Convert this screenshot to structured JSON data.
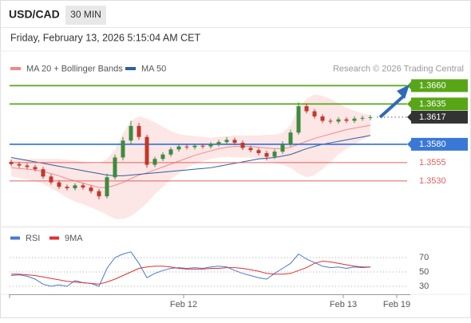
{
  "header": {
    "symbol": "USD/CAD",
    "timeframe": "30 MIN",
    "datetime": "Friday, February 13, 2026 5:15:04 AM CET"
  },
  "chart_data": [
    {
      "type": "candlestick",
      "legend": [
        {
          "name": "MA 20 + Bollinger Bands",
          "color": "#f08a8a"
        },
        {
          "name": "MA 50",
          "color": "#2f5f9e"
        }
      ],
      "credit": "Research © 2026 Trading Central",
      "xlim": [
        -0.2,
        49.6
      ],
      "ylim": [
        1.347,
        1.368
      ],
      "xticks": [
        {
          "value": 21.6,
          "label": "Feb 12"
        },
        {
          "value": 41.6,
          "label": "Feb 13"
        },
        {
          "value": 48.3,
          "label": "Feb 19"
        }
      ],
      "up_color": "#3d8b3d",
      "down_color": "#c0392b",
      "candles": [
        [
          1.3556,
          1.3559,
          1.355,
          1.3553
        ],
        [
          1.3553,
          1.3556,
          1.3548,
          1.3551
        ],
        [
          1.3551,
          1.3554,
          1.3546,
          1.3549
        ],
        [
          1.3549,
          1.3552,
          1.3543,
          1.3546
        ],
        [
          1.3546,
          1.3549,
          1.3533,
          1.3536
        ],
        [
          1.3536,
          1.3539,
          1.3525,
          1.3528
        ],
        [
          1.3528,
          1.3531,
          1.3519,
          1.3522
        ],
        [
          1.3522,
          1.3525,
          1.3517,
          1.352
        ],
        [
          1.352,
          1.3527,
          1.3517,
          1.3524
        ],
        [
          1.3524,
          1.3527,
          1.3518,
          1.3521
        ],
        [
          1.3521,
          1.3524,
          1.3513,
          1.3516
        ],
        [
          1.3516,
          1.3519,
          1.3505,
          1.3509
        ],
        [
          1.3509,
          1.354,
          1.3506,
          1.3535
        ],
        [
          1.3535,
          1.3566,
          1.3532,
          1.3562
        ],
        [
          1.3562,
          1.359,
          1.3558,
          1.3585
        ],
        [
          1.3585,
          1.3612,
          1.358,
          1.3605
        ],
        [
          1.3605,
          1.3609,
          1.3586,
          1.359
        ],
        [
          1.359,
          1.3593,
          1.3548,
          1.3552
        ],
        [
          1.3552,
          1.3563,
          1.3549,
          1.356
        ],
        [
          1.356,
          1.3569,
          1.3557,
          1.3566
        ],
        [
          1.3566,
          1.3576,
          1.3563,
          1.3573
        ],
        [
          1.3573,
          1.358,
          1.357,
          1.3577
        ],
        [
          1.3577,
          1.358,
          1.3573,
          1.3576
        ],
        [
          1.3576,
          1.3581,
          1.3573,
          1.3578
        ],
        [
          1.3578,
          1.3581,
          1.3574,
          1.3577
        ],
        [
          1.3577,
          1.3583,
          1.3574,
          1.358
        ],
        [
          1.358,
          1.3586,
          1.3577,
          1.3583
        ],
        [
          1.3583,
          1.359,
          1.358,
          1.3586
        ],
        [
          1.3586,
          1.3589,
          1.3579,
          1.3582
        ],
        [
          1.3582,
          1.3585,
          1.3572,
          1.3575
        ],
        [
          1.3575,
          1.3578,
          1.3569,
          1.3572
        ],
        [
          1.3572,
          1.3575,
          1.3565,
          1.3568
        ],
        [
          1.3568,
          1.3571,
          1.3558,
          1.3563
        ],
        [
          1.3563,
          1.3573,
          1.356,
          1.357
        ],
        [
          1.357,
          1.3584,
          1.3567,
          1.358
        ],
        [
          1.358,
          1.36,
          1.3577,
          1.3596
        ],
        [
          1.3596,
          1.3637,
          1.3593,
          1.3632
        ],
        [
          1.3632,
          1.3636,
          1.3622,
          1.3625
        ],
        [
          1.3625,
          1.3628,
          1.3615,
          1.3618
        ],
        [
          1.3618,
          1.3621,
          1.3609,
          1.3612
        ],
        [
          1.3612,
          1.3615,
          1.3608,
          1.3611
        ],
        [
          1.3611,
          1.3617,
          1.3608,
          1.3614
        ],
        [
          1.3614,
          1.3617,
          1.3609,
          1.3612
        ],
        [
          1.3612,
          1.3618,
          1.3609,
          1.3615
        ],
        [
          1.3615,
          1.3619,
          1.3612,
          1.3616
        ],
        [
          1.3616,
          1.362,
          1.3613,
          1.3617
        ]
      ],
      "ma20": [
        1.3548,
        1.3547,
        1.3546,
        1.3545,
        1.3543,
        1.354,
        1.3537,
        1.3533,
        1.353,
        1.3527,
        1.3524,
        1.3521,
        1.3521,
        1.3524,
        1.3528,
        1.3533,
        1.3538,
        1.3541,
        1.3545,
        1.3549,
        1.3553,
        1.3557,
        1.3561,
        1.3565,
        1.3568,
        1.3571,
        1.3574,
        1.3576,
        1.3577,
        1.3577,
        1.3577,
        1.3576,
        1.3575,
        1.3574,
        1.3574,
        1.3576,
        1.358,
        1.3584,
        1.3588,
        1.3591,
        1.3594,
        1.3597,
        1.36,
        1.3602,
        1.3604,
        1.3606
      ],
      "upper": [
        1.356,
        1.356,
        1.356,
        1.356,
        1.356,
        1.356,
        1.356,
        1.3559,
        1.3558,
        1.3556,
        1.3554,
        1.3553,
        1.356,
        1.3572,
        1.3595,
        1.3612,
        1.3618,
        1.3615,
        1.361,
        1.3604,
        1.3598,
        1.3594,
        1.3592,
        1.3591,
        1.359,
        1.3589,
        1.359,
        1.3591,
        1.3592,
        1.3592,
        1.3592,
        1.3592,
        1.3593,
        1.3593,
        1.3596,
        1.3606,
        1.363,
        1.3642,
        1.3648,
        1.3646,
        1.3642,
        1.3636,
        1.363,
        1.3626,
        1.3622,
        1.362
      ],
      "lower": [
        1.3536,
        1.3534,
        1.3532,
        1.353,
        1.3526,
        1.352,
        1.3514,
        1.3507,
        1.3502,
        1.3498,
        1.3494,
        1.3489,
        1.3484,
        1.3478,
        1.3478,
        1.3482,
        1.349,
        1.35,
        1.3512,
        1.3522,
        1.3532,
        1.354,
        1.3548,
        1.3553,
        1.3557,
        1.356,
        1.3562,
        1.3563,
        1.3562,
        1.3562,
        1.3562,
        1.356,
        1.3557,
        1.3555,
        1.3552,
        1.3548,
        1.354,
        1.3535,
        1.3538,
        1.3546,
        1.3556,
        1.3566,
        1.3574,
        1.358,
        1.3586,
        1.3592
      ],
      "ma50": [
        1.3562,
        1.356,
        1.3558,
        1.3556,
        1.3554,
        1.3552,
        1.355,
        1.3548,
        1.3546,
        1.3544,
        1.3542,
        1.354,
        1.3538,
        1.3537,
        1.3537,
        1.3538,
        1.3539,
        1.354,
        1.3541,
        1.3542,
        1.3543,
        1.3544,
        1.3545,
        1.3546,
        1.3547,
        1.3548,
        1.355,
        1.3552,
        1.3554,
        1.3556,
        1.3558,
        1.356,
        1.3561,
        1.3562,
        1.3564,
        1.3566,
        1.357,
        1.3574,
        1.3577,
        1.358,
        1.3582,
        1.3584,
        1.3586,
        1.3588,
        1.359,
        1.3592
      ],
      "levels": [
        {
          "value": 1.366,
          "label": "1.3660",
          "color": "#58a618",
          "boxed": true
        },
        {
          "value": 1.3635,
          "label": "1.3635",
          "color": "#58a618",
          "boxed": true
        },
        {
          "value": 1.3617,
          "label": "1.3617",
          "color": "#333333",
          "boxed": true,
          "dotted": true
        },
        {
          "value": 1.358,
          "label": "1.3580",
          "color": "#3a78d8",
          "boxed": true
        },
        {
          "value": 1.3555,
          "label": "1.3555",
          "color": "#e06060",
          "boxed": false
        },
        {
          "value": 1.353,
          "label": "1.3530",
          "color": "#e06060",
          "boxed": false
        }
      ]
    },
    {
      "type": "line",
      "ylim": [
        20,
        85
      ],
      "yticks": [
        70,
        50,
        30
      ],
      "series": [
        {
          "name": "RSI",
          "color": "#4a78d0",
          "values": [
            45,
            46,
            44,
            40,
            33,
            30,
            32,
            30,
            38,
            35,
            34,
            30,
            55,
            70,
            75,
            78,
            62,
            42,
            48,
            52,
            55,
            56,
            55,
            56,
            55,
            57,
            58,
            57,
            52,
            48,
            45,
            42,
            40,
            48,
            55,
            62,
            75,
            68,
            63,
            58,
            56,
            57,
            55,
            57,
            56,
            57
          ]
        },
        {
          "name": "9MA",
          "color": "#e03030",
          "values": [
            47,
            47,
            46,
            45,
            43,
            41,
            39,
            37,
            36,
            35,
            34,
            33,
            36,
            40,
            45,
            50,
            55,
            57,
            58,
            58,
            57,
            55,
            54,
            54,
            54,
            55,
            55,
            56,
            56,
            55,
            53,
            51,
            48,
            47,
            47,
            48,
            52,
            56,
            62,
            65,
            64,
            62,
            60,
            58,
            57,
            57
          ]
        }
      ]
    }
  ]
}
